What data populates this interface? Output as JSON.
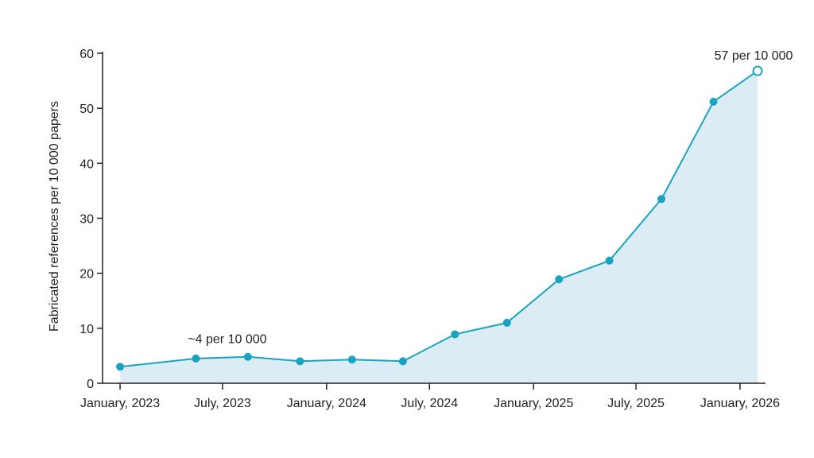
{
  "chart_data": {
    "type": "area",
    "ylabel": "Fabricated references per 10 000 papers",
    "xlabel": "",
    "ylim": [
      0,
      60
    ],
    "yticks": [
      0,
      10,
      20,
      30,
      40,
      50,
      60
    ],
    "xlim": [
      "2022-12-01",
      "2026-02-15"
    ],
    "xticks": [
      {
        "date": "2023-01-01",
        "label": "January, 2023"
      },
      {
        "date": "2023-07-01",
        "label": "July, 2023"
      },
      {
        "date": "2024-01-01",
        "label": "January, 2024"
      },
      {
        "date": "2024-07-01",
        "label": "July, 2024"
      },
      {
        "date": "2025-01-01",
        "label": "January, 2025"
      },
      {
        "date": "2025-07-01",
        "label": "July, 2025"
      },
      {
        "date": "2026-01-01",
        "label": "January, 2026"
      }
    ],
    "series": [
      {
        "x": [
          "2023-01-01",
          "2023-05-15",
          "2023-08-15",
          "2023-11-15",
          "2024-02-15",
          "2024-05-15",
          "2024-08-15",
          "2024-11-15",
          "2025-02-15",
          "2025-05-15",
          "2025-08-15",
          "2025-11-15",
          "2026-02-01"
        ],
        "values": [
          3,
          4.5,
          4.8,
          4,
          4.3,
          4,
          8.9,
          11,
          18.9,
          22.3,
          33.5,
          51.2,
          56.8
        ],
        "last_point_hollow": true
      }
    ],
    "annotations": [
      {
        "text": "~4 per 10 000",
        "x": "2023-08-01",
        "y": 4.7
      },
      {
        "text": "57 per 10 000",
        "x": "2026-02-01",
        "y": 56.8
      }
    ],
    "grid": false,
    "colors": {
      "line": "#1aa3c1",
      "fill": "#dcecf5",
      "axis": "#222222"
    }
  }
}
